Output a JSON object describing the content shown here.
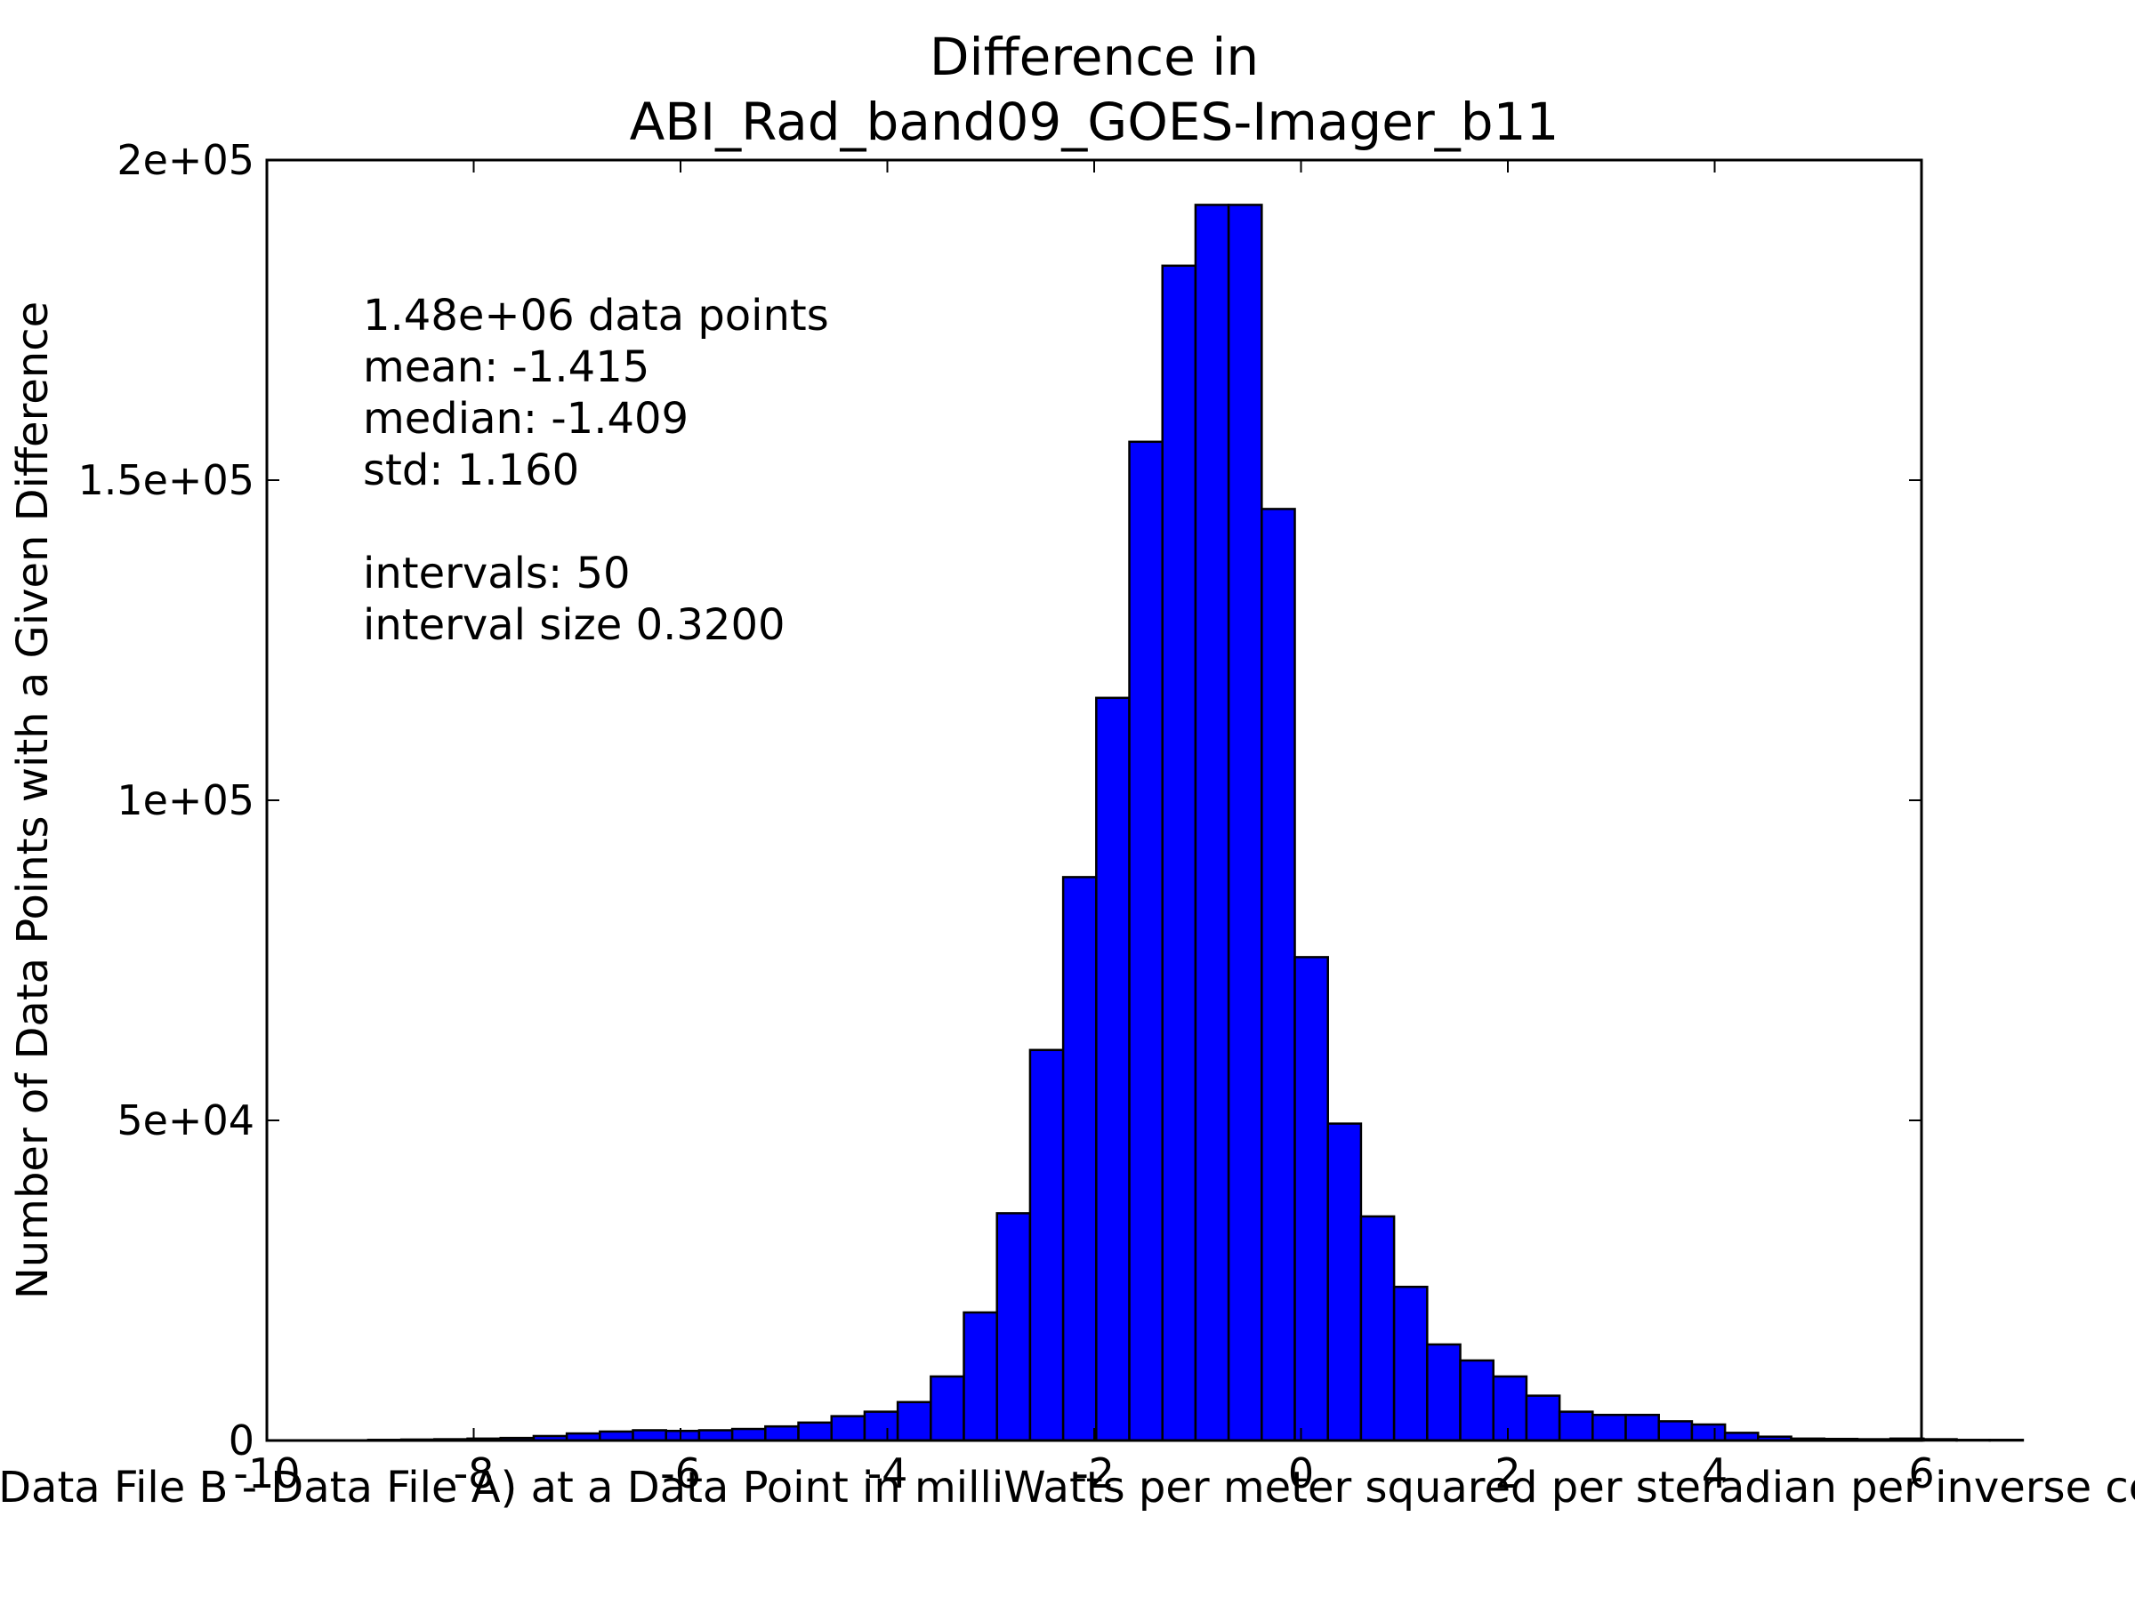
{
  "chart_data": {
    "type": "bar",
    "title_lines": [
      "Difference in",
      "ABI_Rad_band09_GOES-Imager_b11"
    ],
    "xlabel": "Value of (Data File B - Data File A) at a Data Point in milliWatts per meter squared per steradian per inverse centimeter",
    "ylabel": "Number of Data Points with a Given Difference",
    "xlim": [
      -10,
      6
    ],
    "ylim": [
      0,
      200000
    ],
    "x_ticks": [
      {
        "value": -10,
        "label": "-10"
      },
      {
        "value": -8,
        "label": "-8"
      },
      {
        "value": -6,
        "label": "-6"
      },
      {
        "value": -4,
        "label": "-4"
      },
      {
        "value": -2,
        "label": "-2"
      },
      {
        "value": 0,
        "label": "0"
      },
      {
        "value": 2,
        "label": "2"
      },
      {
        "value": 4,
        "label": "4"
      },
      {
        "value": 6,
        "label": "6"
      }
    ],
    "y_ticks": [
      {
        "value": 0,
        "label": "0"
      },
      {
        "value": 50000,
        "label": "5e+04"
      },
      {
        "value": 100000,
        "label": "1e+05"
      },
      {
        "value": 150000,
        "label": "1.5e+05"
      },
      {
        "value": 200000,
        "label": "2e+05"
      }
    ],
    "grid": false,
    "bar_color": "#0000ff",
    "bar_edge_color": "#000000",
    "bin_start": -9.02,
    "bin_width": 0.32,
    "values": [
      100,
      150,
      200,
      300,
      400,
      700,
      1100,
      1400,
      1600,
      1500,
      1600,
      1800,
      2200,
      2800,
      3800,
      4500,
      6000,
      10000,
      20000,
      35500,
      61000,
      88000,
      116000,
      156000,
      183500,
      193000,
      193000,
      145500,
      75500,
      49500,
      35000,
      24000,
      15000,
      12500,
      10000,
      7000,
      4500,
      4000,
      4000,
      3000,
      2500,
      1200,
      600,
      300,
      250,
      200,
      300,
      200,
      100,
      100
    ],
    "annotation_lines": [
      "1.48e+06 data points",
      "mean: -1.415",
      "median: -1.409",
      "std: 1.160",
      "",
      "intervals: 50",
      "interval size 0.3200"
    ]
  }
}
